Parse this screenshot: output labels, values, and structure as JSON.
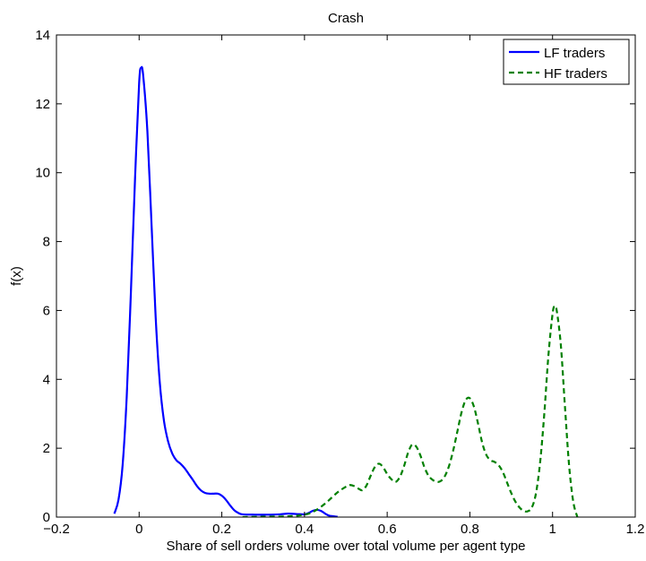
{
  "chart_data": {
    "type": "line",
    "title": "Crash",
    "xlabel": "Share of sell orders volume over total volume per agent type",
    "ylabel": "f(x)",
    "xlim": [
      -0.2,
      1.2
    ],
    "ylim": [
      0,
      14
    ],
    "xticks": [
      -0.2,
      0,
      0.2,
      0.4,
      0.6,
      0.8,
      1,
      1.2
    ],
    "xtick_labels": [
      "−0.2",
      "0",
      "0.2",
      "0.4",
      "0.6",
      "0.8",
      "1",
      "1.2"
    ],
    "yticks": [
      0,
      2,
      4,
      6,
      8,
      10,
      12,
      14
    ],
    "ytick_labels": [
      "0",
      "2",
      "4",
      "6",
      "8",
      "10",
      "12",
      "14"
    ],
    "grid": false,
    "legend_position": "top-right",
    "series": [
      {
        "name": "LF traders",
        "color": "#0000ff",
        "style": "solid",
        "points": [
          [
            -0.06,
            0.1
          ],
          [
            -0.05,
            0.5
          ],
          [
            -0.04,
            1.5
          ],
          [
            -0.03,
            3.5
          ],
          [
            -0.02,
            6.5
          ],
          [
            -0.01,
            9.8
          ],
          [
            0.0,
            12.6
          ],
          [
            0.005,
            13.05
          ],
          [
            0.01,
            12.8
          ],
          [
            0.02,
            11.2
          ],
          [
            0.03,
            8.5
          ],
          [
            0.04,
            5.8
          ],
          [
            0.05,
            3.9
          ],
          [
            0.06,
            2.8
          ],
          [
            0.07,
            2.2
          ],
          [
            0.08,
            1.85
          ],
          [
            0.09,
            1.65
          ],
          [
            0.1,
            1.55
          ],
          [
            0.11,
            1.42
          ],
          [
            0.12,
            1.25
          ],
          [
            0.13,
            1.08
          ],
          [
            0.14,
            0.9
          ],
          [
            0.15,
            0.77
          ],
          [
            0.16,
            0.7
          ],
          [
            0.17,
            0.68
          ],
          [
            0.18,
            0.68
          ],
          [
            0.19,
            0.68
          ],
          [
            0.2,
            0.62
          ],
          [
            0.21,
            0.5
          ],
          [
            0.22,
            0.34
          ],
          [
            0.23,
            0.2
          ],
          [
            0.24,
            0.12
          ],
          [
            0.25,
            0.08
          ],
          [
            0.28,
            0.07
          ],
          [
            0.31,
            0.07
          ],
          [
            0.34,
            0.08
          ],
          [
            0.36,
            0.1
          ],
          [
            0.38,
            0.09
          ],
          [
            0.4,
            0.08
          ],
          [
            0.41,
            0.12
          ],
          [
            0.42,
            0.18
          ],
          [
            0.43,
            0.21
          ],
          [
            0.44,
            0.18
          ],
          [
            0.45,
            0.1
          ],
          [
            0.46,
            0.04
          ],
          [
            0.48,
            0.01
          ]
        ]
      },
      {
        "name": "HF traders",
        "color": "#008000",
        "style": "dashed",
        "points": [
          [
            0.25,
            0.0
          ],
          [
            0.3,
            0.01
          ],
          [
            0.36,
            0.02
          ],
          [
            0.4,
            0.07
          ],
          [
            0.42,
            0.15
          ],
          [
            0.44,
            0.3
          ],
          [
            0.46,
            0.5
          ],
          [
            0.48,
            0.72
          ],
          [
            0.5,
            0.88
          ],
          [
            0.51,
            0.93
          ],
          [
            0.52,
            0.9
          ],
          [
            0.53,
            0.83
          ],
          [
            0.54,
            0.78
          ],
          [
            0.55,
            0.92
          ],
          [
            0.56,
            1.2
          ],
          [
            0.57,
            1.45
          ],
          [
            0.58,
            1.55
          ],
          [
            0.59,
            1.45
          ],
          [
            0.6,
            1.25
          ],
          [
            0.61,
            1.1
          ],
          [
            0.62,
            1.02
          ],
          [
            0.63,
            1.15
          ],
          [
            0.64,
            1.45
          ],
          [
            0.65,
            1.85
          ],
          [
            0.66,
            2.1
          ],
          [
            0.67,
            2.05
          ],
          [
            0.68,
            1.8
          ],
          [
            0.69,
            1.45
          ],
          [
            0.7,
            1.2
          ],
          [
            0.71,
            1.08
          ],
          [
            0.72,
            1.02
          ],
          [
            0.73,
            1.05
          ],
          [
            0.74,
            1.2
          ],
          [
            0.75,
            1.5
          ],
          [
            0.76,
            1.95
          ],
          [
            0.77,
            2.5
          ],
          [
            0.78,
            3.05
          ],
          [
            0.79,
            3.4
          ],
          [
            0.8,
            3.45
          ],
          [
            0.81,
            3.2
          ],
          [
            0.82,
            2.7
          ],
          [
            0.83,
            2.15
          ],
          [
            0.84,
            1.8
          ],
          [
            0.85,
            1.65
          ],
          [
            0.86,
            1.6
          ],
          [
            0.87,
            1.5
          ],
          [
            0.88,
            1.3
          ],
          [
            0.89,
            1.0
          ],
          [
            0.9,
            0.7
          ],
          [
            0.91,
            0.45
          ],
          [
            0.92,
            0.28
          ],
          [
            0.93,
            0.18
          ],
          [
            0.94,
            0.17
          ],
          [
            0.95,
            0.28
          ],
          [
            0.96,
            0.7
          ],
          [
            0.97,
            1.6
          ],
          [
            0.98,
            3.0
          ],
          [
            0.99,
            4.7
          ],
          [
            1.0,
            5.9
          ],
          [
            1.005,
            6.12
          ],
          [
            1.01,
            6.0
          ],
          [
            1.02,
            5.0
          ],
          [
            1.03,
            3.2
          ],
          [
            1.04,
            1.5
          ],
          [
            1.05,
            0.45
          ],
          [
            1.06,
            0.0
          ]
        ]
      }
    ]
  }
}
